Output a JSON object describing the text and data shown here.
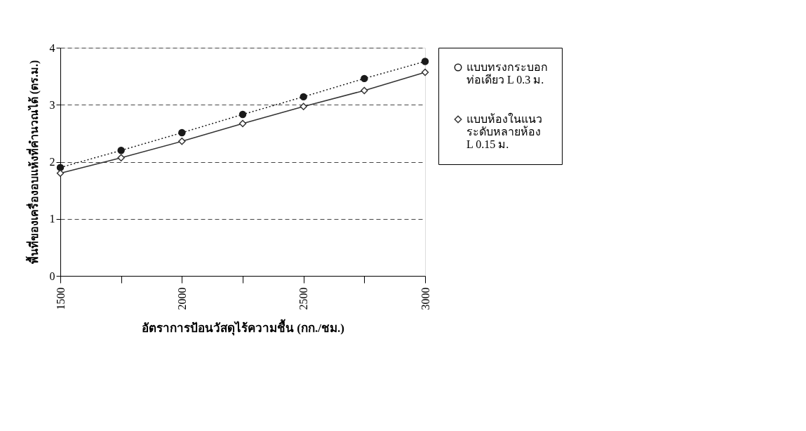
{
  "chart_data": {
    "type": "line",
    "xlabel": "อัตราการป้อนวัสดุไร้ความชื้น (กก./ชม.)",
    "ylabel": "พื้นที่ของเครื่องอบแห้งที่คำนวณได้ (ตร.ม.)",
    "x": [
      1500,
      1750,
      2000,
      2250,
      2500,
      2750,
      3000
    ],
    "xlim": [
      1500,
      3000
    ],
    "xticks": [
      1500,
      {
        "value": 1750,
        "label": null
      },
      2000,
      {
        "value": 2250,
        "label": null
      },
      2500,
      {
        "value": 2750,
        "label": null
      },
      3000
    ],
    "ylim": [
      0,
      4
    ],
    "yticks": [
      0,
      1,
      2,
      3,
      4
    ],
    "grid": "y",
    "legend": "right",
    "series": [
      {
        "name": "แบบทรงกระบอก\nท่อเดียว L 0.3 ม.",
        "color": "#1a1a1a",
        "marker": "circle",
        "line_style": "dotted",
        "values": [
          1.9,
          2.2,
          2.51,
          2.83,
          3.14,
          3.46,
          3.76
        ]
      },
      {
        "name": "แบบห้องในแนว\nระดับหลายห้อง\nL 0.15 ม.",
        "color": "#333333",
        "marker": "diamond",
        "line_style": "solid",
        "values": [
          1.8,
          2.07,
          2.36,
          2.67,
          2.97,
          3.25,
          3.57
        ]
      }
    ]
  }
}
